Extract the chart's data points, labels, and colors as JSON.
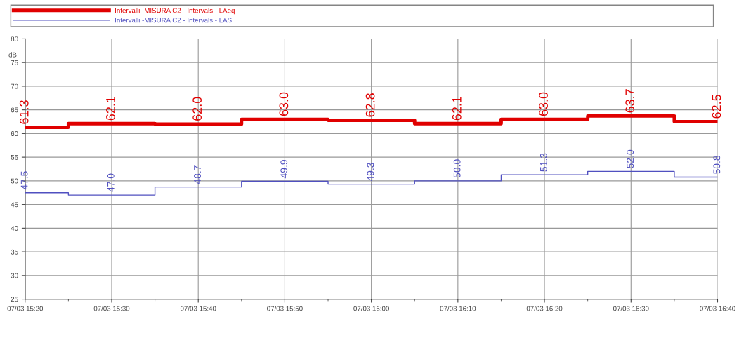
{
  "chart_data": {
    "type": "step",
    "ylabel": "dB",
    "categories": [
      "07/03 15:20",
      "07/03 15:30",
      "07/03 15:40",
      "07/03 15:50",
      "07/03 16:00",
      "07/03 16:10",
      "07/03 16:20",
      "07/03 16:30",
      "07/03 16:40"
    ],
    "series": [
      {
        "name": "Intervalli -MISURA C2 - Intervals - LAeq",
        "color": "#e00000",
        "values": [
          61.3,
          62.1,
          62.0,
          63.0,
          62.8,
          62.1,
          63.0,
          63.7,
          62.5
        ],
        "value_labels": [
          "61.3",
          "62.1",
          "62.0",
          "63.0",
          "62.8",
          "62.1",
          "63.0",
          "63.7",
          "62.5"
        ]
      },
      {
        "name": "Intervalli -MISURA C2 - Intervals - LAS",
        "color": "#5050c0",
        "values": [
          47.5,
          47.0,
          48.7,
          49.9,
          49.3,
          50.0,
          51.3,
          52.0,
          50.8
        ],
        "value_labels": [
          "47.5",
          "47.0",
          "48.7",
          "49.9",
          "49.3",
          "50.0",
          "51.3",
          "52.0",
          "50.8"
        ]
      }
    ],
    "ylim": [
      25,
      80
    ],
    "yticks": [
      25,
      30,
      35,
      40,
      45,
      50,
      55,
      60,
      65,
      70,
      75,
      80
    ],
    "grid": true,
    "legend": "top"
  }
}
